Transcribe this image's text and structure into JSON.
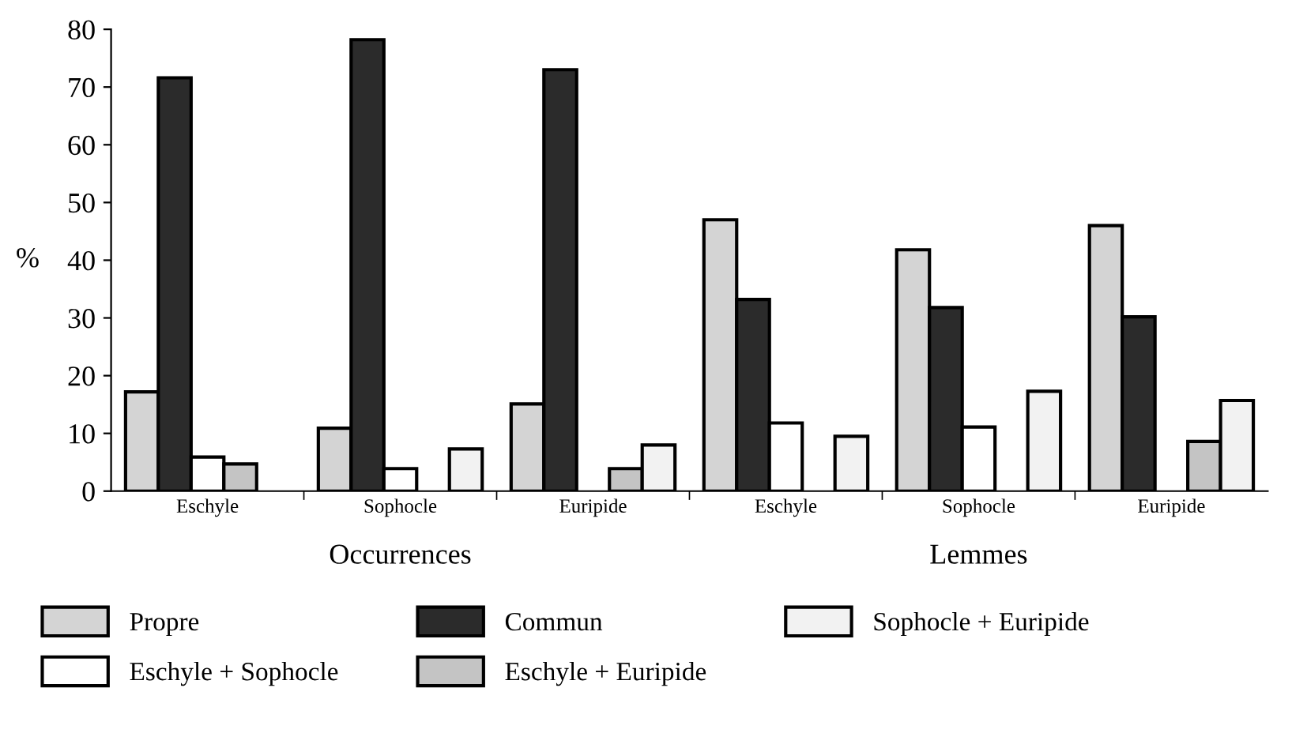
{
  "chart_data": {
    "type": "bar",
    "ylabel": "%",
    "categories": [
      "Eschyle",
      "Sophocle",
      "Euripide",
      "Eschyle",
      "Sophocle",
      "Euripide"
    ],
    "series": [
      {
        "name": "Propre",
        "color": "#d4d4d4",
        "values": [
          17.2,
          10.9,
          15.1,
          47,
          41.8,
          46
        ]
      },
      {
        "name": "Commun",
        "color": "#2b2b2b",
        "values": [
          71.6,
          78.2,
          73.0,
          33.2,
          31.8,
          30.2
        ]
      },
      {
        "name": "Eschyle + Sophocle",
        "color": "#ffffff",
        "values": [
          5.9,
          3.9,
          null,
          11.8,
          11.1,
          null
        ]
      },
      {
        "name": "Eschyle + Euripide",
        "color": "#c4c4c4",
        "values": [
          4.7,
          null,
          3.9,
          null,
          null,
          8.6
        ]
      },
      {
        "name": "Sophocle + Euripide",
        "color": "#f2f2f2",
        "values": [
          null,
          7.3,
          8.0,
          9.5,
          17.3,
          15.7
        ]
      }
    ],
    "ylim": [
      0,
      80
    ],
    "yticks": [
      0,
      10,
      20,
      30,
      40,
      50,
      60,
      70,
      80
    ],
    "grid": false,
    "legend": "bottom",
    "annotations": [
      "Occurrences",
      "Lemmes"
    ]
  }
}
